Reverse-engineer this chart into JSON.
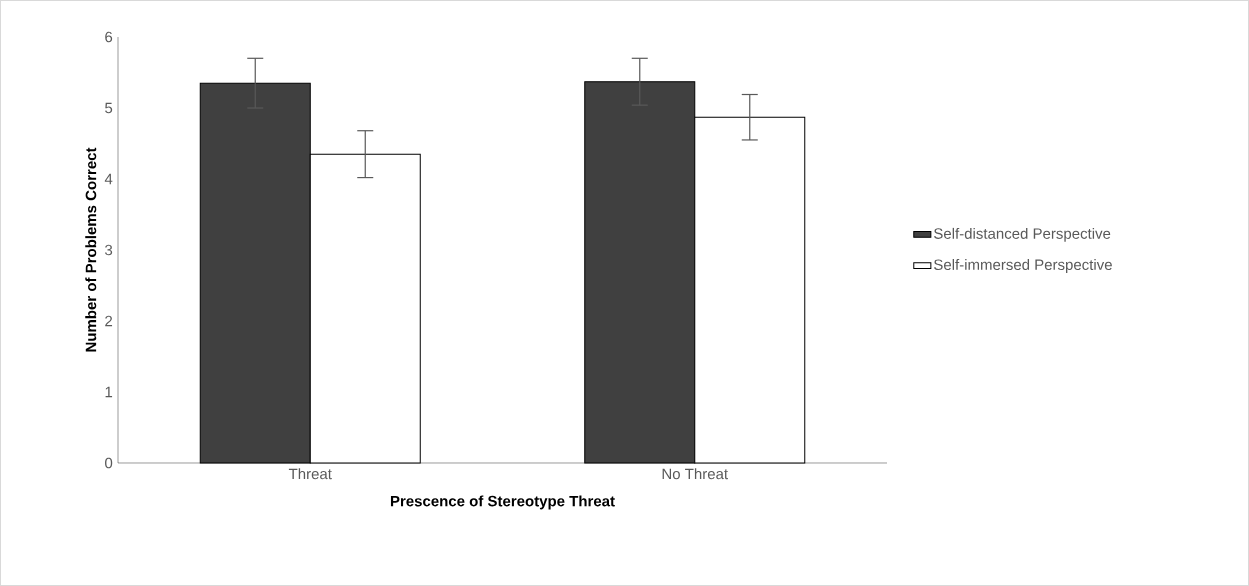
{
  "chart_data": {
    "type": "bar",
    "xlabel": "Prescence of Stereotype Threat",
    "ylabel": "Number of Problems Correct",
    "categories": [
      "Threat",
      "No Threat"
    ],
    "series": [
      {
        "name": "Self-distanced Perspective",
        "color": "#404040",
        "values": [
          5.35,
          5.37
        ],
        "errors": [
          0.35,
          0.33
        ]
      },
      {
        "name": "Self-immersed Perspective",
        "color": "#ffffff",
        "values": [
          4.35,
          4.87
        ],
        "errors": [
          0.33,
          0.32
        ]
      }
    ],
    "ylim": [
      0,
      6
    ],
    "yticks": [
      0,
      1,
      2,
      3,
      4,
      5,
      6
    ],
    "legend": "right"
  }
}
